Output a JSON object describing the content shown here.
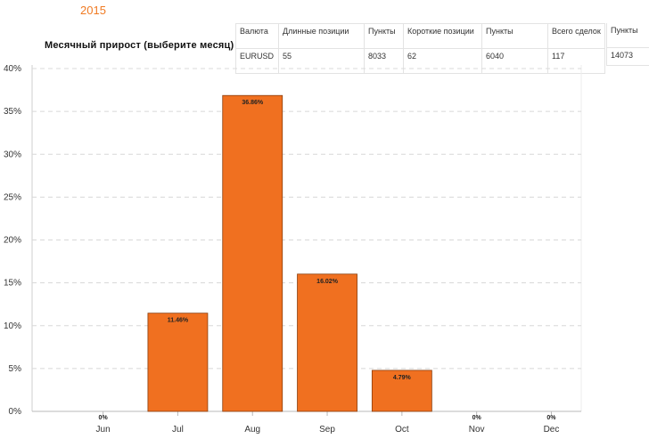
{
  "header": {
    "year": "2015"
  },
  "chart_title": "Месячный прирост (выберите месяц)",
  "stats": {
    "headers": [
      "Валюта",
      "Длинные позиции",
      "Пункты",
      "Короткие позиции",
      "Пункты",
      "Всего сделок",
      "Пункты"
    ],
    "values": [
      "EURUSD",
      "55",
      "8033",
      "62",
      "6040",
      "117",
      "14073"
    ]
  },
  "chart_data": {
    "type": "bar",
    "title": "Месячный прирост (выберите месяц)",
    "xlabel": "",
    "ylabel": "",
    "categories": [
      "Jun",
      "Jul",
      "Aug",
      "Sep",
      "Oct",
      "Nov",
      "Dec"
    ],
    "values": [
      0,
      11.46,
      36.86,
      16.02,
      4.79,
      0,
      0
    ],
    "data_labels": [
      "0%",
      "11.46%",
      "36.86%",
      "16.02%",
      "4.79%",
      "0%",
      "0%"
    ],
    "ylim": [
      0,
      40
    ],
    "yticks": [
      "0%",
      "5%",
      "10%",
      "15%",
      "20%",
      "25%",
      "30%",
      "35%",
      "40%"
    ],
    "grid": true,
    "colors": {
      "bar": "#f07020",
      "bar_stroke": "#8a3d0c",
      "grid": "#d8d8d8"
    }
  }
}
